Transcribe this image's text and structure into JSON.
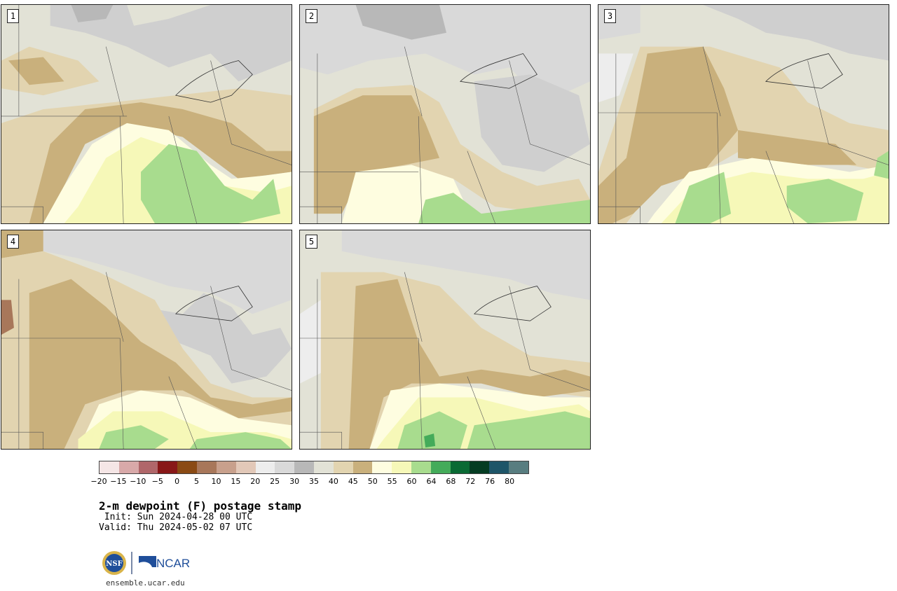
{
  "panels": [
    {
      "label": "1"
    },
    {
      "label": "2"
    },
    {
      "label": "3"
    },
    {
      "label": "4"
    },
    {
      "label": "5"
    }
  ],
  "colorbar": {
    "colors": [
      "#f5e6e6",
      "#d8a9a9",
      "#b0676a",
      "#881818",
      "#8a4a14",
      "#a8775a",
      "#c8a08c",
      "#e2c8b8",
      "#ededed",
      "#d9d9d9",
      "#b8b8b8",
      "#e2e2d6",
      "#e2d4b0",
      "#c9b07c",
      "#fefde0",
      "#f6f8b8",
      "#a8dc8e",
      "#44ab5a",
      "#0a6a34",
      "#053c22",
      "#1e5568",
      "#587d80"
    ],
    "ticks": [
      "−20",
      "−15",
      "−10",
      "−5",
      "0",
      "5",
      "10",
      "15",
      "20",
      "25",
      "30",
      "35",
      "40",
      "45",
      "50",
      "55",
      "60",
      "64",
      "68",
      "72",
      "76",
      "80"
    ]
  },
  "title": "2-m dewpoint (F) postage stamp",
  "init": " Init: Sun 2024-04-28 00 UTC",
  "valid": "Valid: Thu 2024-05-02 07 UTC",
  "logos": {
    "nsf": "NSF",
    "ncar": "NCAR"
  },
  "website": "ensemble.ucar.edu"
}
